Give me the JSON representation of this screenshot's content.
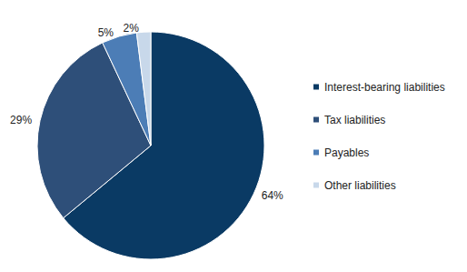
{
  "chart_data": {
    "type": "pie",
    "categories": [
      "Interest-bearing liabilities",
      "Tax liabilities",
      "Payables",
      "Other liabilities"
    ],
    "values": [
      64,
      29,
      5,
      2
    ],
    "value_labels": [
      "64%",
      "29%",
      "5%",
      "2%"
    ],
    "colors": [
      "#0a3a64",
      "#2e4f79",
      "#4c7db6",
      "#c8d8ea"
    ],
    "data_labels": true,
    "legend": "right"
  }
}
